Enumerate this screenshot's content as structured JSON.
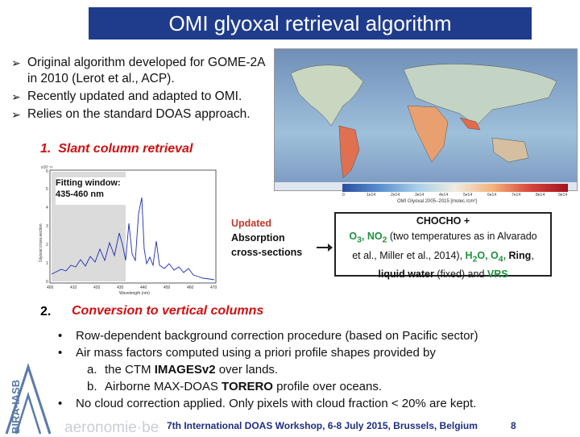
{
  "title": "OMI glyoxal retrieval algorithm",
  "bullets": [
    "Original algorithm developed for GOME-2A in 2010 (Lerot et al., ACP).",
    "Recently updated and adapted to OMI.",
    "Relies on the standard DOAS approach."
  ],
  "map": {
    "colorbar_label": "OMI Glyoxal 2005–2015 [molec./cm²]",
    "colorbar_ticks": [
      "0",
      "1e14",
      "2e14",
      "3e14",
      "4e14",
      "5e14",
      "6e14",
      "7e14",
      "8e14",
      "9e14"
    ]
  },
  "section1": {
    "number": "1.",
    "title": "Slant column retrieval"
  },
  "spectrum": {
    "fit_label_line1": "Fitting window:",
    "fit_label_line2": "435-460 nm",
    "xlabel": "Wavelength (nm)",
    "ylabel": "Glyoxal cross-section",
    "exponent": "x10⁻¹⁹",
    "x_ticks": [
      "400",
      "410",
      "420",
      "430",
      "440",
      "450",
      "460",
      "470"
    ],
    "y_ticks": [
      "0",
      "1",
      "2",
      "3",
      "4",
      "5",
      "6"
    ]
  },
  "updated": {
    "line1": "Updated",
    "line2": "Absorption",
    "line3": "cross-sections"
  },
  "box": {
    "line1": "CHOCHO +",
    "o3": "O",
    "o3sub": "3",
    "no2": "NO",
    "no2sub": "2",
    "line2_rest": " (two temperatures as in Alvarado",
    "line3_a": "et al., Miller et al., 2014), ",
    "h2o": "H",
    "h2osub": "2",
    "h2o_end": "O",
    "o4": "O",
    "o4sub": "4",
    "ring": "Ring",
    "line4_a": "liquid water",
    "line4_b": " (fixed) and ",
    "vrs": "VRS"
  },
  "section2": {
    "number": "2.",
    "title": "Conversion to vertical columns"
  },
  "list": {
    "item1": "Row-dependent background correction procedure (based on Pacific sector)",
    "item2": "Air mass factors computed using a priori profile shapes provided by",
    "sub_a_letter": "a.",
    "sub_a_pre": "the CTM ",
    "sub_a_bold": "IMAGESv2",
    "sub_a_post": " over lands.",
    "sub_b_letter": "b.",
    "sub_b_pre": "Airborne MAX-DOAS ",
    "sub_b_bold": "TORERO",
    "sub_b_post": " profile over oceans.",
    "item3": "No cloud correction applied. Only pixels with cloud fraction < 20% are kept."
  },
  "footer": "7th International DOAS Workshop, 6-8 July 2015, Brussels, Belgium",
  "page_number": "8",
  "logo": {
    "vertical_text": "BIRA-IASB",
    "site": "aeronomie·be"
  },
  "colors": {
    "title_bg": "#1f3c8c",
    "section_red": "#d01010",
    "highlight_green": "#1e9140",
    "footer_blue": "#1f2e80"
  }
}
